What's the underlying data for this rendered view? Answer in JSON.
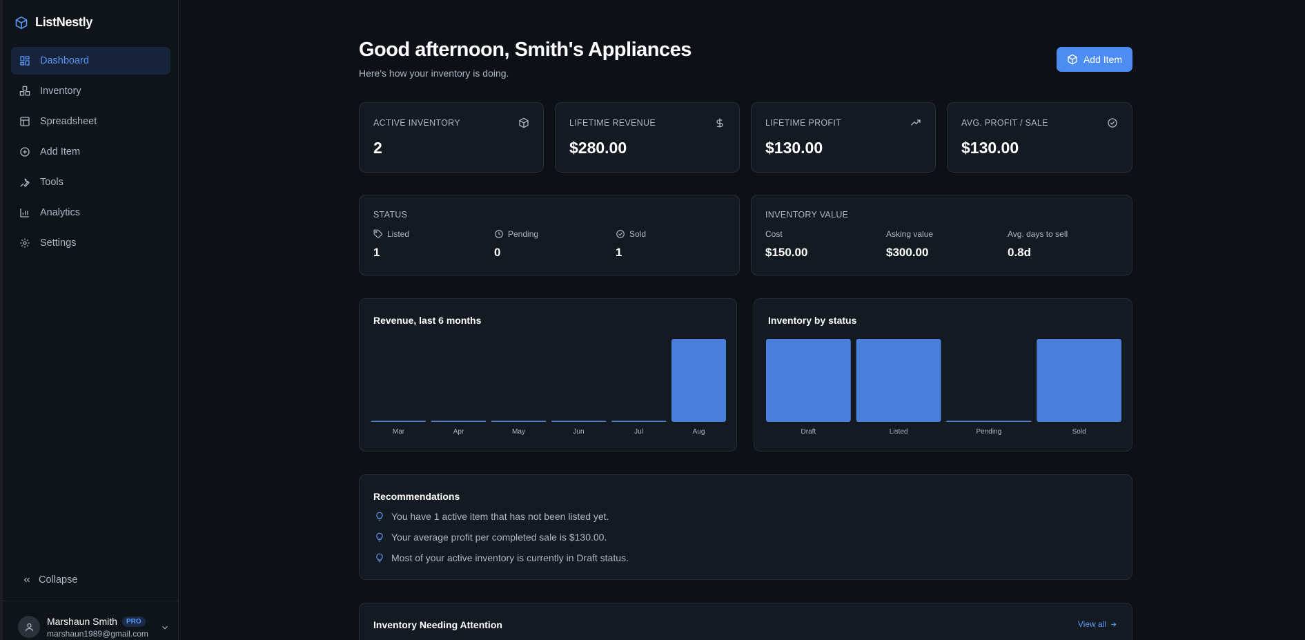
{
  "app": {
    "name": "ListNestly"
  },
  "sidebar": {
    "items": [
      {
        "label": "Dashboard",
        "icon": "dashboard-icon",
        "active": true
      },
      {
        "label": "Inventory",
        "icon": "boxes-icon"
      },
      {
        "label": "Spreadsheet",
        "icon": "table-icon"
      },
      {
        "label": "Add Item",
        "icon": "plus-circle-icon"
      },
      {
        "label": "Tools",
        "icon": "wrench-icon"
      },
      {
        "label": "Analytics",
        "icon": "bar-chart-icon"
      },
      {
        "label": "Settings",
        "icon": "gear-icon"
      }
    ],
    "collapse_label": "Collapse",
    "user": {
      "name": "Marshaun Smith",
      "badge": "PRO",
      "email": "marshaun1989@gmail.com"
    }
  },
  "header": {
    "title": "Good afternoon, Smith's Appliances",
    "subtitle": "Here's how your inventory is doing.",
    "add_button": "Add Item"
  },
  "stats": [
    {
      "label": "ACTIVE INVENTORY",
      "value": "2",
      "icon": "package-icon"
    },
    {
      "label": "LIFETIME REVENUE",
      "value": "$280.00",
      "icon": "dollar-icon"
    },
    {
      "label": "LIFETIME PROFIT",
      "value": "$130.00",
      "icon": "trending-up-icon"
    },
    {
      "label": "AVG. PROFIT / SALE",
      "value": "$130.00",
      "icon": "check-circle-icon"
    }
  ],
  "status_card": {
    "title": "STATUS",
    "items": [
      {
        "label": "Listed",
        "value": "1",
        "icon": "tag-icon"
      },
      {
        "label": "Pending",
        "value": "0",
        "icon": "clock-icon"
      },
      {
        "label": "Sold",
        "value": "1",
        "icon": "check-circle-icon"
      }
    ]
  },
  "value_card": {
    "title": "INVENTORY VALUE",
    "items": [
      {
        "label": "Cost",
        "value": "$150.00"
      },
      {
        "label": "Asking value",
        "value": "$300.00"
      },
      {
        "label": "Avg. days to sell",
        "value": "0.8d"
      }
    ]
  },
  "chart_data": [
    {
      "type": "bar",
      "title": "Revenue, last 6 months",
      "categories": [
        "Mar",
        "Apr",
        "May",
        "Jun",
        "Jul",
        "Aug"
      ],
      "values": [
        0,
        0,
        0,
        0,
        0,
        280
      ],
      "ylim": [
        0,
        280
      ],
      "grid": false,
      "color": "#4a7fdc"
    },
    {
      "type": "bar",
      "title": "Inventory by status",
      "categories": [
        "Draft",
        "Listed",
        "Pending",
        "Sold"
      ],
      "values": [
        1,
        1,
        0,
        1
      ],
      "ylim": [
        0,
        1
      ],
      "grid": false,
      "color": "#4a7fdc"
    }
  ],
  "recommendations": {
    "title": "Recommendations",
    "items": [
      "You have 1 active item that has not been listed yet.",
      "Your average profit per completed sale is $130.00.",
      "Most of your active inventory is currently in Draft status."
    ]
  },
  "attention": {
    "title": "Inventory Needing Attention",
    "view_all": "View all"
  },
  "colors": {
    "accent": "#4d8cf0",
    "background": "#0d1117",
    "card": "#141a22",
    "bar": "#4a7fdc"
  }
}
